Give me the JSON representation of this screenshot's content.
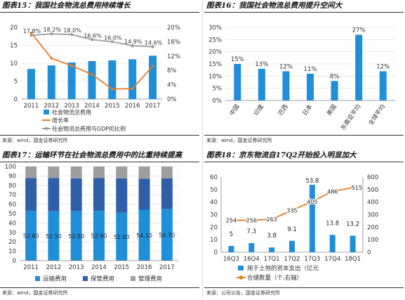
{
  "colors": {
    "blue": "#1f8fd9",
    "darkblue": "#2f5fa8",
    "orange": "#e67e22",
    "gray": "#9e9e9e",
    "grid": "#d9d9d9"
  },
  "panels": [
    {
      "title": "图表15：我国社会物流总费用持续增长",
      "source": "来源：wind，国金证券研究所"
    },
    {
      "title": "图表16：我国社会物流总费用提升空间大",
      "source": "来源：wind，国金证券研究所"
    },
    {
      "title": "图表17：运输环节在社会物流总费用中的比重持续提高",
      "source": "来源：wind，国金证券研究所"
    },
    {
      "title": "图表18：京东物流自17Q2开始投入明显加大",
      "source": "来源：公司公告，国金证券研究所"
    }
  ],
  "chart_data": [
    {
      "type": "bar",
      "categories": [
        "2011",
        "2012",
        "2013",
        "2014",
        "2015",
        "2016",
        "2017"
      ],
      "series": [
        {
          "name": "社会物流总费用",
          "type": "bar",
          "axis": "left",
          "values": [
            8.4,
            9.4,
            10.2,
            10.6,
            10.8,
            11.1,
            12.1
          ]
        },
        {
          "name": "增长率",
          "type": "line",
          "axis": "right",
          "values": [
            18.5,
            11.4,
            9.3,
            6.9,
            2.8,
            2.9,
            9.2
          ]
        },
        {
          "name": "社会物流总费用与GDP的比例",
          "type": "line",
          "axis": "left",
          "values": [
            17.8,
            18.2,
            18.0,
            16.6,
            16.0,
            14.9,
            14.6
          ],
          "labels": [
            "17.8%",
            "18.2%",
            "18.0%",
            "16.6%",
            "16.0%",
            "14.9%",
            "14.6%"
          ]
        }
      ],
      "y_left": {
        "ticks": [
          "0",
          "5",
          "10",
          "15",
          "20"
        ],
        "ylim": [
          0,
          20
        ]
      },
      "y_right": {
        "ticks": [
          "0%",
          "4%",
          "8%",
          "12%",
          "16%",
          "20%"
        ],
        "ylim": [
          0,
          20
        ]
      },
      "legend_position": "bottom-left"
    },
    {
      "type": "bar",
      "categories": [
        "中国",
        "印度",
        "巴西",
        "日本",
        "美国",
        "东南亚平均",
        "全球平均"
      ],
      "values": [
        15,
        13,
        12,
        11,
        8,
        27,
        12
      ],
      "value_labels": [
        "15%",
        "13%",
        "12%",
        "11%",
        "8%",
        "27%",
        "12%"
      ],
      "y_ticks": [
        "0%",
        "5%",
        "10%",
        "15%",
        "20%",
        "25%",
        "30%"
      ],
      "ylim": [
        0,
        30
      ]
    },
    {
      "type": "bar",
      "stacked": true,
      "categories": [
        "2011",
        "2012",
        "2013",
        "2014",
        "2015",
        "2016",
        "2017"
      ],
      "series": [
        {
          "name": "运输费用",
          "values": [
            52.8,
            52.5,
            52.5,
            52.9,
            51.0,
            54.1,
            54.7
          ],
          "labels": [
            "52.80",
            "52.50",
            "52.50",
            "52.90",
            "51.00",
            "54.10",
            "54.70"
          ]
        },
        {
          "name": "保管费用",
          "values": [
            35.0,
            35.3,
            35.0,
            35.0,
            36.5,
            32.9,
            32.8
          ]
        },
        {
          "name": "管理费用",
          "values": [
            12.2,
            12.2,
            12.5,
            12.1,
            12.5,
            13.0,
            12.5
          ]
        }
      ],
      "y_ticks": [
        "0",
        "10",
        "20",
        "30",
        "40",
        "50",
        "60",
        "70",
        "80",
        "90",
        "100"
      ],
      "ylim": [
        0,
        100
      ],
      "legend_position": "bottom"
    },
    {
      "type": "bar",
      "categories": [
        "16Q3",
        "16Q4",
        "17Q1",
        "17Q2",
        "17Q3",
        "17Q4",
        "18Q1"
      ],
      "series": [
        {
          "name": "用于土地的资本支出（亿元",
          "type": "bar",
          "axis": "left",
          "values": [
            5,
            7.3,
            3.8,
            9.1,
            53.8,
            13.8,
            13.2
          ],
          "labels": [
            "5",
            "7.3",
            "3.8",
            "9.1",
            "53.8",
            "13.8",
            "13.2"
          ]
        },
        {
          "name": "仓储数量（个,右轴）",
          "type": "line",
          "axis": "right",
          "values": [
            254,
            256,
            263,
            335,
            405,
            486,
            515
          ],
          "labels": [
            "254",
            "256",
            "263",
            "335",
            "405",
            "486",
            "515"
          ]
        }
      ],
      "y_left": {
        "ticks": [
          "0",
          "10",
          "20",
          "30",
          "40",
          "50",
          "60"
        ],
        "ylim": [
          0,
          60
        ]
      },
      "y_right": {
        "ticks": [
          "0",
          "100",
          "200",
          "300",
          "400",
          "500",
          "600"
        ],
        "ylim": [
          0,
          600
        ]
      },
      "legend_position": "bottom"
    }
  ]
}
